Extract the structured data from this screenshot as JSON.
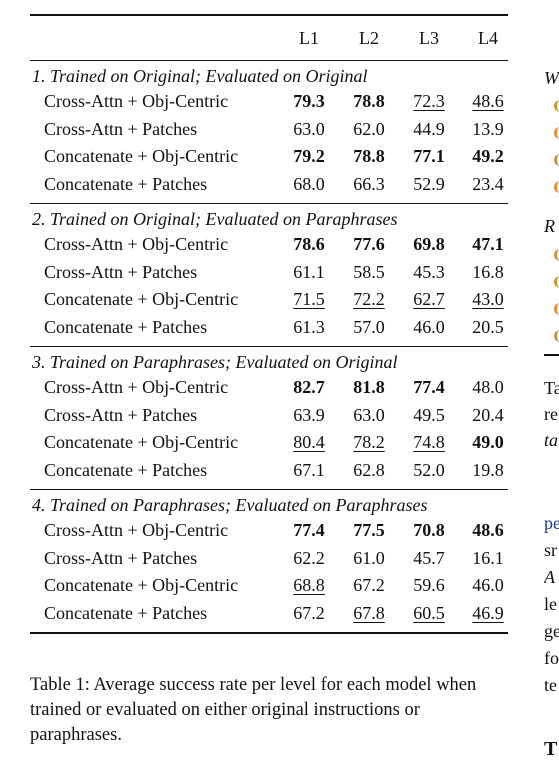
{
  "table": {
    "columns": [
      "L1",
      "L2",
      "L3",
      "L4"
    ],
    "sections": [
      {
        "title": "1. Trained on Original; Evaluated on Original",
        "rows": [
          {
            "label": "Cross-Attn + Obj-Centric",
            "values": [
              "79.3",
              "78.8",
              "72.3",
              "48.6"
            ],
            "styles": [
              "b",
              "b",
              "u",
              "u"
            ]
          },
          {
            "label": "Cross-Attn + Patches",
            "values": [
              "63.0",
              "62.0",
              "44.9",
              "13.9"
            ],
            "styles": [
              "",
              "",
              "",
              ""
            ]
          },
          {
            "label": "Concatenate + Obj-Centric",
            "values": [
              "79.2",
              "78.8",
              "77.1",
              "49.2"
            ],
            "styles": [
              "b",
              "b",
              "b",
              "b"
            ]
          },
          {
            "label": "Concatenate + Patches",
            "values": [
              "68.0",
              "66.3",
              "52.9",
              "23.4"
            ],
            "styles": [
              "",
              "",
              "",
              ""
            ]
          }
        ]
      },
      {
        "title": "2. Trained on Original; Evaluated on Paraphrases",
        "rows": [
          {
            "label": "Cross-Attn + Obj-Centric",
            "values": [
              "78.6",
              "77.6",
              "69.8",
              "47.1"
            ],
            "styles": [
              "b",
              "b",
              "b",
              "b"
            ]
          },
          {
            "label": "Cross-Attn + Patches",
            "values": [
              "61.1",
              "58.5",
              "45.3",
              "16.8"
            ],
            "styles": [
              "",
              "",
              "",
              ""
            ]
          },
          {
            "label": "Concatenate + Obj-Centric",
            "values": [
              "71.5",
              "72.2",
              "62.7",
              "43.0"
            ],
            "styles": [
              "u",
              "u",
              "u",
              "u"
            ]
          },
          {
            "label": "Concatenate + Patches",
            "values": [
              "61.3",
              "57.0",
              "46.0",
              "20.5"
            ],
            "styles": [
              "",
              "",
              "",
              ""
            ]
          }
        ]
      },
      {
        "title": "3. Trained on Paraphrases; Evaluated on Original",
        "rows": [
          {
            "label": "Cross-Attn + Obj-Centric",
            "values": [
              "82.7",
              "81.8",
              "77.4",
              "48.0"
            ],
            "styles": [
              "b",
              "b",
              "b",
              ""
            ]
          },
          {
            "label": "Cross-Attn + Patches",
            "values": [
              "63.9",
              "63.0",
              "49.5",
              "20.4"
            ],
            "styles": [
              "",
              "",
              "",
              ""
            ]
          },
          {
            "label": "Concatenate + Obj-Centric",
            "values": [
              "80.4",
              "78.2",
              "74.8",
              "49.0"
            ],
            "styles": [
              "u",
              "u",
              "u",
              "b"
            ]
          },
          {
            "label": "Concatenate + Patches",
            "values": [
              "67.1",
              "62.8",
              "52.0",
              "19.8"
            ],
            "styles": [
              "",
              "",
              "",
              ""
            ]
          }
        ]
      },
      {
        "title": "4. Trained on Paraphrases; Evaluated on Paraphrases",
        "rows": [
          {
            "label": "Cross-Attn + Obj-Centric",
            "values": [
              "77.4",
              "77.5",
              "70.8",
              "48.6"
            ],
            "styles": [
              "b",
              "b",
              "b",
              "b"
            ]
          },
          {
            "label": "Cross-Attn + Patches",
            "values": [
              "62.2",
              "61.0",
              "45.7",
              "16.1"
            ],
            "styles": [
              "",
              "",
              "",
              ""
            ]
          },
          {
            "label": "Concatenate + Obj-Centric",
            "values": [
              "68.8",
              "67.2",
              "59.6",
              "46.0"
            ],
            "styles": [
              "u",
              "",
              "",
              ""
            ]
          },
          {
            "label": "Concatenate + Patches",
            "values": [
              "67.2",
              "67.8",
              "60.5",
              "46.9"
            ],
            "styles": [
              "",
              "u",
              "u",
              "u"
            ]
          }
        ]
      }
    ]
  },
  "caption": "Table 1: Average success rate per level for each model when trained or evaluated on either original instructions or paraphrases.",
  "right_fragment": {
    "lines": [
      {
        "text": "W",
        "italic": true
      },
      {
        "text": "R",
        "italic": true
      },
      {
        "text": "Ta",
        "italic": false
      },
      {
        "text": "re",
        "italic": false
      },
      {
        "text": "ta",
        "italic": true
      },
      {
        "text": "pe",
        "italic": false
      },
      {
        "text": "sr",
        "italic": false
      },
      {
        "text": "A",
        "italic": true
      },
      {
        "text": "le",
        "italic": false
      },
      {
        "text": "ge",
        "italic": false
      },
      {
        "text": "fo",
        "italic": false
      },
      {
        "text": "te",
        "italic": false
      },
      {
        "text": "T",
        "italic": false
      }
    ],
    "accent_color": "#e58a2c",
    "link_color": "#1a3a9a"
  }
}
